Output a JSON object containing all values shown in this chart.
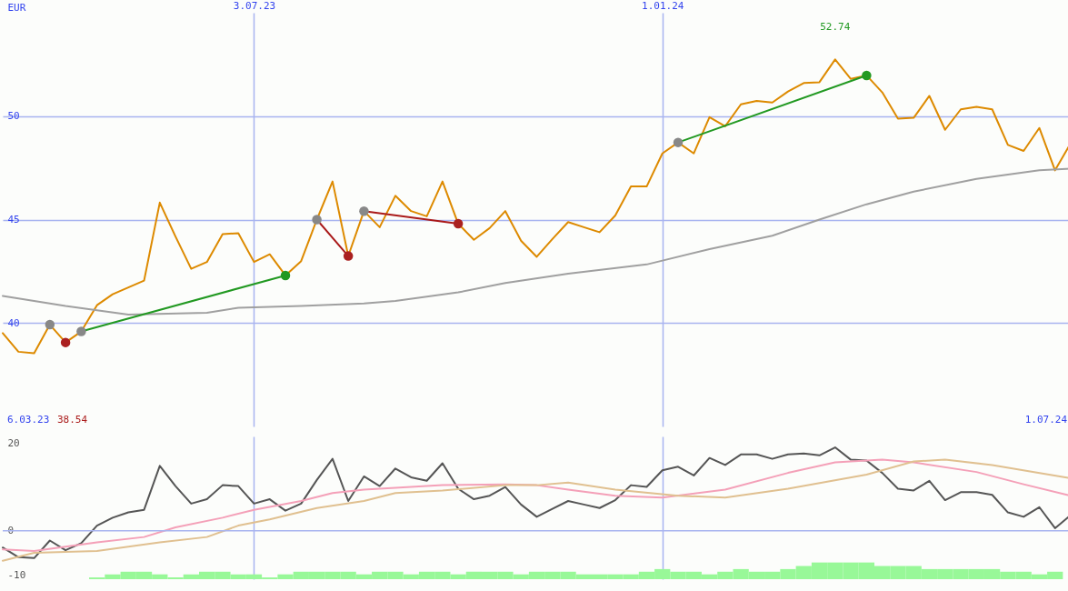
{
  "chart_data": [
    {
      "type": "line",
      "ylabel": "EUR",
      "grid": true,
      "x": [
        "2023-03-13",
        "2023-03-20",
        "2023-03-27",
        "2023-04-03",
        "2023-04-10",
        "2023-04-17",
        "2023-04-24",
        "2023-05-01",
        "2023-05-08",
        "2023-05-15",
        "2023-05-22",
        "2023-05-29",
        "2023-06-05",
        "2023-06-12",
        "2023-06-19",
        "2023-06-26",
        "2023-07-03",
        "2023-07-10",
        "2023-07-17",
        "2023-07-24",
        "2023-07-31",
        "2023-08-07",
        "2023-08-14",
        "2023-08-21",
        "2023-08-28",
        "2023-09-04",
        "2023-09-11",
        "2023-09-18",
        "2023-09-25",
        "2023-10-02",
        "2023-10-09",
        "2023-10-16",
        "2023-10-23",
        "2023-10-30",
        "2023-11-06",
        "2023-11-13",
        "2023-11-20",
        "2023-11-27",
        "2023-12-04",
        "2023-12-11",
        "2023-12-18",
        "2023-12-25",
        "2024-01-01",
        "2024-01-08",
        "2024-01-15",
        "2024-01-22",
        "2024-01-29",
        "2024-02-05",
        "2024-02-12",
        "2024-02-19",
        "2024-02-26",
        "2024-03-04",
        "2024-03-11",
        "2024-03-18",
        "2024-03-25",
        "2024-04-01",
        "2024-04-08",
        "2024-04-15",
        "2024-04-22",
        "2024-04-29",
        "2024-05-06",
        "2024-05-13",
        "2024-05-20",
        "2024-05-27",
        "2024-06-03",
        "2024-06-10",
        "2024-06-17",
        "2024-06-24",
        "2024-07-01"
      ],
      "xlim": [
        "2023-03-13",
        "2024-07-01"
      ],
      "xticks": [
        {
          "value": "2023-07-03",
          "label": "3.07.23"
        },
        {
          "value": "2024-01-01",
          "label": "1.01.24"
        }
      ],
      "ylim": [
        35,
        55
      ],
      "yticks": [
        40,
        45,
        50
      ],
      "series": [
        {
          "color": "#dd8a00",
          "values": [
            39.51,
            38.61,
            38.54,
            39.92,
            39.06,
            39.59,
            40.86,
            41.39,
            41.72,
            42.05,
            45.82,
            44.18,
            42.62,
            42.95,
            44.3,
            44.34,
            42.95,
            43.32,
            42.3,
            42.99,
            45.0,
            46.84,
            43.24,
            45.41,
            44.63,
            46.15,
            45.41,
            45.16,
            46.84,
            44.8,
            44.02,
            44.59,
            45.41,
            43.98,
            43.2,
            44.06,
            44.88,
            44.63,
            44.39,
            45.2,
            46.6,
            46.6,
            48.2,
            48.73,
            48.2,
            49.95,
            49.51,
            50.57,
            50.74,
            50.66,
            51.19,
            51.6,
            51.64,
            52.74,
            51.8,
            51.97,
            51.15,
            49.88,
            49.92,
            50.98,
            49.34,
            50.33,
            50.45,
            50.33,
            48.61,
            48.32,
            49.43,
            47.38,
            48.69
          ]
        },
        {
          "color": "#a0a0a0",
          "x": [
            "2023-03-13",
            "2023-04-10",
            "2023-05-08",
            "2023-06-12",
            "2023-06-26",
            "2023-07-24",
            "2023-08-21",
            "2023-09-04",
            "2023-10-02",
            "2023-10-23",
            "2023-11-20",
            "2023-12-25",
            "2024-01-22",
            "2024-02-19",
            "2024-03-11",
            "2024-04-01",
            "2024-04-22",
            "2024-05-20",
            "2024-06-17",
            "2024-07-01"
          ],
          "values": [
            41.31,
            40.82,
            40.41,
            40.49,
            40.74,
            40.82,
            40.94,
            41.07,
            41.48,
            41.93,
            42.38,
            42.83,
            43.57,
            44.22,
            45.0,
            45.74,
            46.35,
            46.97,
            47.38,
            47.46
          ]
        },
        {
          "type": "line",
          "color": "#229922",
          "x": [
            "2023-04-17",
            "2023-07-17"
          ],
          "values": [
            39.59,
            42.3
          ]
        },
        {
          "type": "line",
          "color": "#aa1a1a",
          "x": [
            "2023-07-31",
            "2023-08-14"
          ],
          "values": [
            45.0,
            43.24
          ]
        },
        {
          "type": "line",
          "color": "#aa1a1a",
          "x": [
            "2023-08-21",
            "2023-10-02"
          ],
          "values": [
            45.41,
            44.8
          ]
        },
        {
          "type": "line",
          "color": "#229922",
          "x": [
            "2024-01-08",
            "2024-04-01"
          ],
          "values": [
            48.73,
            51.97
          ]
        },
        {
          "type": "scatter",
          "marker": "circle",
          "color": "#888888",
          "x": [
            "2023-04-03",
            "2023-04-17",
            "2023-07-31",
            "2023-08-21",
            "2024-01-08"
          ],
          "values": [
            39.92,
            39.59,
            45.0,
            45.41,
            48.73
          ]
        },
        {
          "type": "scatter",
          "marker": "circle",
          "color": "#aa2020",
          "x": [
            "2023-04-10",
            "2023-08-14",
            "2023-10-02"
          ],
          "values": [
            39.06,
            43.24,
            44.8
          ]
        },
        {
          "type": "scatter",
          "marker": "circle",
          "color": "#229922",
          "x": [
            "2023-07-17",
            "2024-04-01"
          ],
          "values": [
            42.3,
            51.97
          ]
        }
      ],
      "annotations": [
        "6.03.23",
        "38.54",
        "1.07.24",
        {
          "text": "52.74",
          "x": "2024-03-18",
          "y": 52.74
        }
      ]
    },
    {
      "type": "line",
      "grid": "x",
      "tick_labels": "y",
      "x": [
        "2023-03-13",
        "2023-03-20",
        "2023-03-27",
        "2023-04-03",
        "2023-04-10",
        "2023-04-17",
        "2023-04-24",
        "2023-05-01",
        "2023-05-08",
        "2023-05-15",
        "2023-05-22",
        "2023-05-29",
        "2023-06-05",
        "2023-06-12",
        "2023-06-19",
        "2023-06-26",
        "2023-07-03",
        "2023-07-10",
        "2023-07-17",
        "2023-07-24",
        "2023-07-31",
        "2023-08-07",
        "2023-08-14",
        "2023-08-21",
        "2023-08-28",
        "2023-09-04",
        "2023-09-11",
        "2023-09-18",
        "2023-09-25",
        "2023-10-02",
        "2023-10-09",
        "2023-10-16",
        "2023-10-23",
        "2023-10-30",
        "2023-11-06",
        "2023-11-13",
        "2023-11-20",
        "2023-11-27",
        "2023-12-04",
        "2023-12-11",
        "2023-12-18",
        "2023-12-25",
        "2024-01-01",
        "2024-01-08",
        "2024-01-15",
        "2024-01-22",
        "2024-01-29",
        "2024-02-05",
        "2024-02-12",
        "2024-02-19",
        "2024-02-26",
        "2024-03-04",
        "2024-03-11",
        "2024-03-18",
        "2024-03-25",
        "2024-04-01",
        "2024-04-08",
        "2024-04-15",
        "2024-04-22",
        "2024-04-29",
        "2024-05-06",
        "2024-05-13",
        "2024-05-20",
        "2024-05-27",
        "2024-06-03",
        "2024-06-10",
        "2024-06-17",
        "2024-06-24",
        "2024-07-01"
      ],
      "xlim": [
        "2023-03-13",
        "2024-07-01"
      ],
      "xticks": [
        {
          "value": "2023-07-03",
          "label": null
        },
        {
          "value": "2024-01-01",
          "label": null
        }
      ],
      "ylim": [
        -11,
        21.5
      ],
      "yticks": [
        -10,
        0,
        20
      ],
      "ref_lines": [
        {
          "axis": "y",
          "value": 0
        }
      ],
      "series": [
        {
          "type": "bar",
          "color": "#98f898",
          "values": [
            null,
            null,
            null,
            null,
            null,
            null,
            0.4,
            1.1,
            1.7,
            1.7,
            1.1,
            0.4,
            1.1,
            1.7,
            1.7,
            1.1,
            1.1,
            0.4,
            1.1,
            1.7,
            1.7,
            1.7,
            1.7,
            1.1,
            1.7,
            1.7,
            1.1,
            1.7,
            1.7,
            1.1,
            1.7,
            1.7,
            1.7,
            1.1,
            1.7,
            1.7,
            1.7,
            1.1,
            1.1,
            1.1,
            1.1,
            1.7,
            2.3,
            1.7,
            1.7,
            1.1,
            1.7,
            2.3,
            1.7,
            1.7,
            2.3,
            3.0,
            3.8,
            3.8,
            3.8,
            3.8,
            3.0,
            3.0,
            3.0,
            2.3,
            2.3,
            2.3,
            2.3,
            2.3,
            1.7,
            1.7,
            1.1,
            1.7,
            null
          ],
          "base": [
            null,
            null,
            null,
            null,
            null,
            null,
            -11,
            -11,
            -11,
            -11,
            -11,
            -11,
            -11,
            -11,
            -11,
            -11,
            -11,
            -11,
            -11,
            -11,
            -11,
            -11,
            -11,
            -11,
            -11,
            -11,
            -11,
            -11,
            -11,
            -11,
            -11,
            -11,
            -11,
            -11,
            -11,
            -11,
            -11,
            -11,
            -11,
            -11,
            -11,
            -11,
            -11,
            -11,
            -11,
            -11,
            -11,
            -11,
            -11,
            -11,
            -11,
            -11,
            -11,
            -11,
            -11,
            -11,
            -11,
            -11,
            -11,
            -11,
            -11,
            -11,
            -11,
            -11,
            -11,
            -11,
            -11,
            -11,
            null
          ]
        },
        {
          "color": "#555555",
          "values": [
            -3.8,
            -6,
            -6.2,
            -2.2,
            -4.4,
            -2.8,
            1.2,
            3,
            4.2,
            4.8,
            14.8,
            10.2,
            6.2,
            7.2,
            10.4,
            10.2,
            6.2,
            7.2,
            4.6,
            6.2,
            11.6,
            16.4,
            6.8,
            12.4,
            10.2,
            14.2,
            12.2,
            11.4,
            15.4,
            9.6,
            7.2,
            8,
            10,
            6,
            3.2,
            5,
            6.8,
            6,
            5.2,
            7,
            10.4,
            10,
            13.8,
            14.6,
            12.6,
            16.6,
            15,
            17.4,
            17.4,
            16.4,
            17.4,
            17.6,
            17.2,
            19,
            16.2,
            16,
            13.2,
            9.6,
            9.2,
            11.4,
            7,
            8.8,
            8.8,
            8.2,
            4.2,
            3.2,
            5.4,
            0.6,
            3.6
          ]
        },
        {
          "color": "#f4a0b8",
          "x": [
            "2023-03-13",
            "2023-03-27",
            "2023-04-24",
            "2023-05-15",
            "2023-05-29",
            "2023-06-19",
            "2023-07-03",
            "2023-07-24",
            "2023-08-07",
            "2023-08-21",
            "2023-09-11",
            "2023-09-25",
            "2023-10-23",
            "2023-11-06",
            "2023-11-20",
            "2023-12-11",
            "2024-01-01",
            "2024-01-29",
            "2024-02-26",
            "2024-03-18",
            "2024-04-08",
            "2024-04-22",
            "2024-05-20",
            "2024-06-10",
            "2024-07-01"
          ],
          "values": [
            -4.2,
            -4.6,
            -2.6,
            -1.4,
            0.8,
            3,
            4.8,
            6.8,
            8.6,
            9.4,
            10,
            10.4,
            10.6,
            10.4,
            9.4,
            8,
            7.6,
            9.4,
            13.2,
            15.6,
            16.2,
            15.6,
            13.4,
            10.6,
            8
          ]
        },
        {
          "color": "#e0c090",
          "x": [
            "2023-03-13",
            "2023-03-27",
            "2023-04-24",
            "2023-05-22",
            "2023-06-12",
            "2023-06-26",
            "2023-07-10",
            "2023-07-31",
            "2023-08-21",
            "2023-09-04",
            "2023-09-25",
            "2023-10-23",
            "2023-11-06",
            "2023-11-20",
            "2023-12-11",
            "2024-01-08",
            "2024-01-29",
            "2024-02-26",
            "2024-04-01",
            "2024-04-22",
            "2024-05-06",
            "2024-05-27",
            "2024-07-01"
          ],
          "values": [
            -6.8,
            -5,
            -4.6,
            -2.6,
            -1.4,
            1.2,
            2.6,
            5.2,
            6.8,
            8.6,
            9.2,
            10.4,
            10.4,
            11,
            9.4,
            8,
            7.6,
            9.6,
            12.8,
            15.8,
            16.2,
            15,
            12
          ]
        }
      ]
    }
  ]
}
